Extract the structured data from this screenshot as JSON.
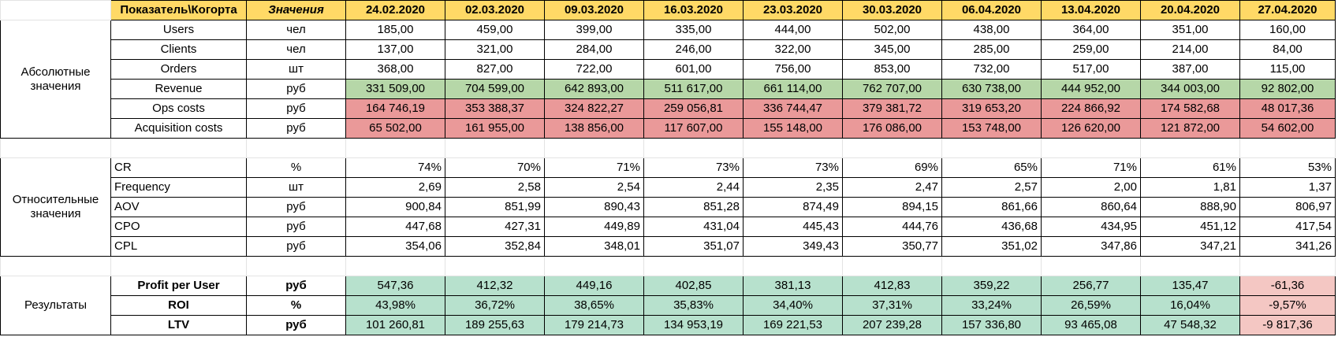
{
  "header": {
    "indicator": "Показатель\\Когорта",
    "values": "Значения",
    "dates": [
      "24.02.2020",
      "02.03.2020",
      "09.03.2020",
      "16.03.2020",
      "23.03.2020",
      "30.03.2020",
      "06.04.2020",
      "13.04.2020",
      "20.04.2020",
      "27.04.2020"
    ]
  },
  "groups": {
    "absolute": "Абсолютные значения",
    "relative": "Относительные значения",
    "results": "Результаты"
  },
  "colors": {
    "header": "#ffd966",
    "revenue": "#b6d7a8",
    "costs": "#ea9999",
    "positive": "#b7e1cd",
    "negative": "#f4c7c3"
  },
  "absolute_rows": [
    {
      "name": "Users",
      "unit": "чел",
      "values": [
        "185,00",
        "459,00",
        "399,00",
        "335,00",
        "444,00",
        "502,00",
        "438,00",
        "364,00",
        "351,00",
        "160,00"
      ]
    },
    {
      "name": "Clients",
      "unit": "чел",
      "values": [
        "137,00",
        "321,00",
        "284,00",
        "246,00",
        "322,00",
        "345,00",
        "285,00",
        "259,00",
        "214,00",
        "84,00"
      ]
    },
    {
      "name": "Orders",
      "unit": "шт",
      "values": [
        "368,00",
        "827,00",
        "722,00",
        "601,00",
        "756,00",
        "853,00",
        "732,00",
        "517,00",
        "387,00",
        "115,00"
      ]
    },
    {
      "name": "Revenue",
      "unit": "руб",
      "values": [
        "331 509,00",
        "704 599,00",
        "642 893,00",
        "511 617,00",
        "661 114,00",
        "762 707,00",
        "630 738,00",
        "444 952,00",
        "344 003,00",
        "92 802,00"
      ]
    },
    {
      "name": "Ops costs",
      "unit": "руб",
      "values": [
        "164 746,19",
        "353 388,37",
        "324 822,27",
        "259 056,81",
        "336 744,47",
        "379 381,72",
        "319 653,20",
        "224 866,92",
        "174 582,68",
        "48 017,36"
      ]
    },
    {
      "name": "Acquisition costs",
      "unit": "руб",
      "values": [
        "65 502,00",
        "161 955,00",
        "138 856,00",
        "117 607,00",
        "155 148,00",
        "176 086,00",
        "153 748,00",
        "126 620,00",
        "121 872,00",
        "54 602,00"
      ]
    }
  ],
  "relative_rows": [
    {
      "name": "CR",
      "unit": "%",
      "values": [
        "74%",
        "70%",
        "71%",
        "73%",
        "73%",
        "69%",
        "65%",
        "71%",
        "61%",
        "53%"
      ]
    },
    {
      "name": "Frequency",
      "unit": "шт",
      "values": [
        "2,69",
        "2,58",
        "2,54",
        "2,44",
        "2,35",
        "2,47",
        "2,57",
        "2,00",
        "1,81",
        "1,37"
      ]
    },
    {
      "name": "AOV",
      "unit": "руб",
      "values": [
        "900,84",
        "851,99",
        "890,43",
        "851,28",
        "874,49",
        "894,15",
        "861,66",
        "860,64",
        "888,90",
        "806,97"
      ]
    },
    {
      "name": "CPO",
      "unit": "руб",
      "values": [
        "447,68",
        "427,31",
        "449,89",
        "431,04",
        "445,43",
        "444,76",
        "436,68",
        "434,95",
        "451,12",
        "417,54"
      ]
    },
    {
      "name": "CPL",
      "unit": "руб",
      "values": [
        "354,06",
        "352,84",
        "348,01",
        "351,07",
        "349,43",
        "350,77",
        "351,02",
        "347,86",
        "347,21",
        "341,26"
      ]
    }
  ],
  "result_rows": [
    {
      "name": "Profit per User",
      "unit": "руб",
      "values": [
        "547,36",
        "412,32",
        "449,16",
        "402,85",
        "381,13",
        "412,83",
        "359,22",
        "256,77",
        "135,47",
        "-61,36"
      ]
    },
    {
      "name": "ROI",
      "unit": "%",
      "values": [
        "43,98%",
        "36,72%",
        "38,65%",
        "35,83%",
        "34,40%",
        "37,31%",
        "33,24%",
        "26,59%",
        "16,04%",
        "-9,57%"
      ]
    },
    {
      "name": "LTV",
      "unit": "руб",
      "values": [
        "101 260,81",
        "189 255,63",
        "179 214,73",
        "134 953,19",
        "169 221,53",
        "207 239,28",
        "157 336,80",
        "93 465,08",
        "47 548,32",
        "-9 817,36"
      ]
    }
  ]
}
